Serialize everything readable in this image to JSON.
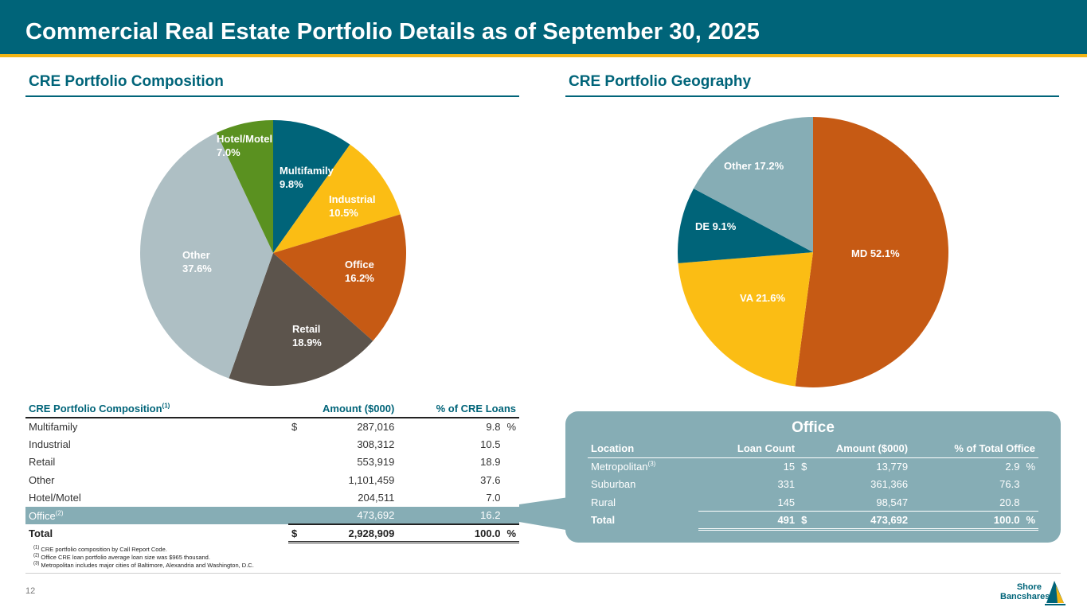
{
  "header": {
    "title": "Commercial Real Estate Portfolio Details as of September 30, 2025"
  },
  "sections": {
    "composition_title": "CRE Portfolio Composition",
    "geography_title": "CRE Portfolio Geography"
  },
  "colors": {
    "teal": "#006479",
    "yellow": "#fbbd14",
    "orange": "#c65a14",
    "dark": "#5c544c",
    "gray": "#aebfc4",
    "green": "#5a9120",
    "light_teal": "#86adb5"
  },
  "chart_data": [
    {
      "type": "pie",
      "title": "CRE Portfolio Composition",
      "slices": [
        {
          "name": "Multifamily",
          "value": 9.8,
          "label": "9.8%",
          "color": "#006479"
        },
        {
          "name": "Industrial",
          "value": 10.5,
          "label": "10.5%",
          "color": "#fbbd14"
        },
        {
          "name": "Office",
          "value": 16.2,
          "label": "16.2%",
          "color": "#c65a14"
        },
        {
          "name": "Retail",
          "value": 18.9,
          "label": "18.9%",
          "color": "#5c544c"
        },
        {
          "name": "Other",
          "value": 37.6,
          "label": "37.6%",
          "color": "#aebfc4"
        },
        {
          "name": "Hotel/Motel",
          "value": 7.0,
          "label": "7.0%",
          "color": "#5a9120"
        }
      ]
    },
    {
      "type": "pie",
      "title": "CRE Portfolio Geography",
      "slices": [
        {
          "name": "MD",
          "value": 52.1,
          "label": "52.1%",
          "color": "#c65a14"
        },
        {
          "name": "VA",
          "value": 21.6,
          "label": "21.6%",
          "color": "#fbbd14"
        },
        {
          "name": "DE",
          "value": 9.1,
          "label": "9.1%",
          "color": "#006479"
        },
        {
          "name": "Other",
          "value": 17.2,
          "label": "17.2%",
          "color": "#86adb5"
        }
      ]
    }
  ],
  "composition_table": {
    "headers": {
      "category": "CRE Portfolio Composition",
      "category_sup": "(1)",
      "amount": "Amount ($000)",
      "pct": "% of CRE Loans"
    },
    "rows": [
      {
        "name": "Multifamily",
        "sup": "",
        "dollar": "$",
        "amount": "287,016",
        "pct": "9.8",
        "pct_sign": "%"
      },
      {
        "name": "Industrial",
        "sup": "",
        "dollar": "",
        "amount": "308,312",
        "pct": "10.5",
        "pct_sign": ""
      },
      {
        "name": "Retail",
        "sup": "",
        "dollar": "",
        "amount": "553,919",
        "pct": "18.9",
        "pct_sign": ""
      },
      {
        "name": "Other",
        "sup": "",
        "dollar": "",
        "amount": "1,101,459",
        "pct": "37.6",
        "pct_sign": ""
      },
      {
        "name": "Hotel/Motel",
        "sup": "",
        "dollar": "",
        "amount": "204,511",
        "pct": "7.0",
        "pct_sign": ""
      },
      {
        "name": "Office",
        "sup": "(2)",
        "dollar": "",
        "amount": "473,692",
        "pct": "16.2",
        "pct_sign": ""
      }
    ],
    "total": {
      "name": "Total",
      "dollar": "$",
      "amount": "2,928,909",
      "pct": "100.0",
      "pct_sign": "%"
    }
  },
  "office_table": {
    "title": "Office",
    "headers": {
      "location": "Location",
      "count": "Loan Count",
      "amount": "Amount ($000)",
      "pct": "% of Total Office"
    },
    "rows": [
      {
        "name": "Metropolitan",
        "sup": "(3)",
        "count": "15",
        "dollar": "$",
        "amount": "13,779",
        "pct": "2.9",
        "pct_sign": "%"
      },
      {
        "name": "Suburban",
        "sup": "",
        "count": "331",
        "dollar": "",
        "amount": "361,366",
        "pct": "76.3",
        "pct_sign": ""
      },
      {
        "name": "Rural",
        "sup": "",
        "count": "145",
        "dollar": "",
        "amount": "98,547",
        "pct": "20.8",
        "pct_sign": ""
      }
    ],
    "total": {
      "name": "Total",
      "count": "491",
      "dollar": "$",
      "amount": "473,692",
      "pct": "100.0",
      "pct_sign": "%"
    }
  },
  "footnotes": [
    {
      "sup": "(1)",
      "text": "CRE portfolio composition by Call Report Code."
    },
    {
      "sup": "(2)",
      "text": "Office CRE loan portfolio average loan size was $965 thousand."
    },
    {
      "sup": "(3)",
      "text": "Metropolitan includes major cities of Baltimore, Alexandria and Washington, D.C."
    }
  ],
  "footer": {
    "page_number": "12",
    "logo_line1": "Shore",
    "logo_line2": "Bancshares"
  }
}
